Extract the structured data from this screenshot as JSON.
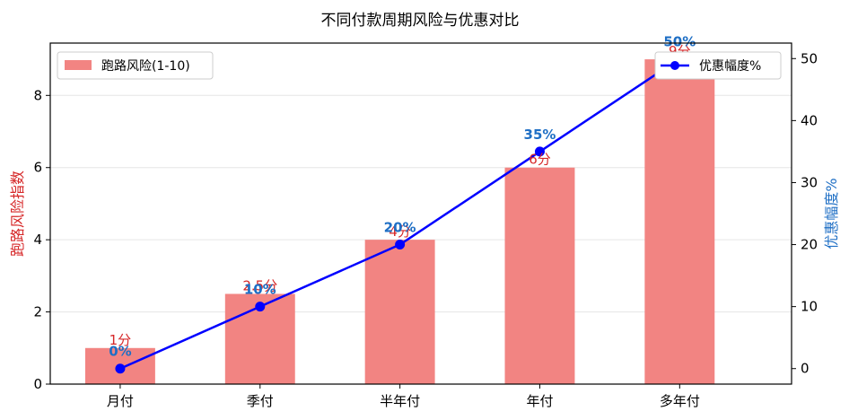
{
  "chart_data": {
    "type": "bar",
    "title": "不同付款周期风险与优惠对比",
    "categories": [
      "月付",
      "季付",
      "半年付",
      "年付",
      "多年付"
    ],
    "series": [
      {
        "name": "跑路风险(1-10)",
        "chart": "bar",
        "axis": "left",
        "values": [
          1,
          2.5,
          4,
          6,
          9
        ],
        "labels": [
          "1分",
          "2.5分",
          "4分",
          "6分",
          "9分"
        ],
        "color": "#f28482"
      },
      {
        "name": "优惠幅度%",
        "chart": "line",
        "axis": "right",
        "values": [
          0,
          10,
          20,
          35,
          50
        ],
        "labels": [
          "0%",
          "10%",
          "20%",
          "35%",
          "50%"
        ],
        "color": "#0000ff",
        "label_color": "#1f6fc5"
      }
    ],
    "ylabel_left": "跑路风险指数",
    "ylabel_right": "优惠幅度%",
    "ylabel_left_color": "#d62728",
    "ylabel_right_color": "#1f6fc5",
    "ylim_left": [
      0,
      9.45
    ],
    "ylim_right": [
      -2.5,
      52.5
    ],
    "yticks_left": [
      "0",
      "2",
      "4",
      "6",
      "8"
    ],
    "yticks_right": [
      "0",
      "10",
      "20",
      "30",
      "40",
      "50"
    ],
    "grid": "horizontal",
    "legend_left_position": "top-left",
    "legend_right_position": "top-right"
  }
}
